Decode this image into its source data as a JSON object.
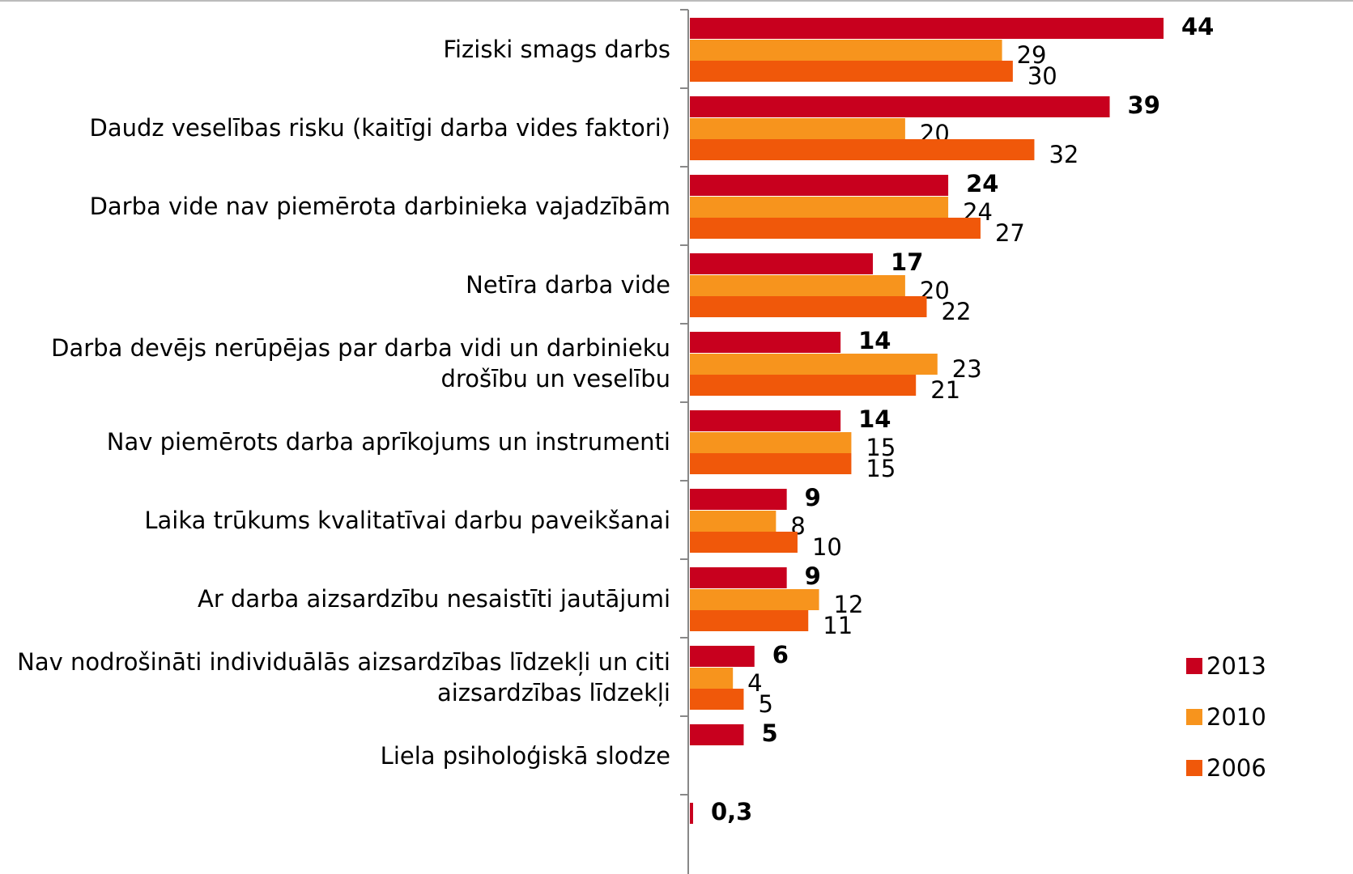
{
  "chart_data": {
    "type": "bar",
    "orientation": "horizontal",
    "categories": [
      "Fiziski smags darbs",
      "Daudz veselības risku (kaitīgi darba vides faktori)",
      "Darba vide nav piemērota darbinieka vajadzībām",
      "Netīra darba vide",
      "Darba devējs nerūpējas par darba vidi un darbinieku\ndrošību un veselību",
      "Nav piemērots darba aprīkojums un instrumenti",
      "Laika trūkums kvalitatīvai darbu paveikšanai",
      "Ar darba aizsardzību nesaistīti jautājumi",
      "Nav nodrošināti individuālās aizsardzības līdzekļi un citi\naizsardzības līdzekļi",
      "Liela psiholoģiskā slodze",
      null
    ],
    "series": [
      {
        "name": "2013",
        "color": "#c8001e",
        "values": [
          44,
          39,
          24,
          17,
          14,
          14,
          9,
          9,
          6,
          5,
          0.3
        ],
        "value_labels": [
          "44",
          "39",
          "24",
          "17",
          "14",
          "14",
          "9",
          "9",
          "6",
          "5",
          "0,3"
        ]
      },
      {
        "name": "2010",
        "color": "#f7941d",
        "values": [
          29,
          20,
          24,
          20,
          23,
          15,
          8,
          12,
          4,
          null,
          null
        ]
      },
      {
        "name": "2006",
        "color": "#f0580a",
        "values": [
          30,
          32,
          27,
          22,
          21,
          15,
          10,
          11,
          5,
          null,
          null
        ]
      }
    ],
    "xlim": [
      0,
      44
    ],
    "legend": "right"
  }
}
